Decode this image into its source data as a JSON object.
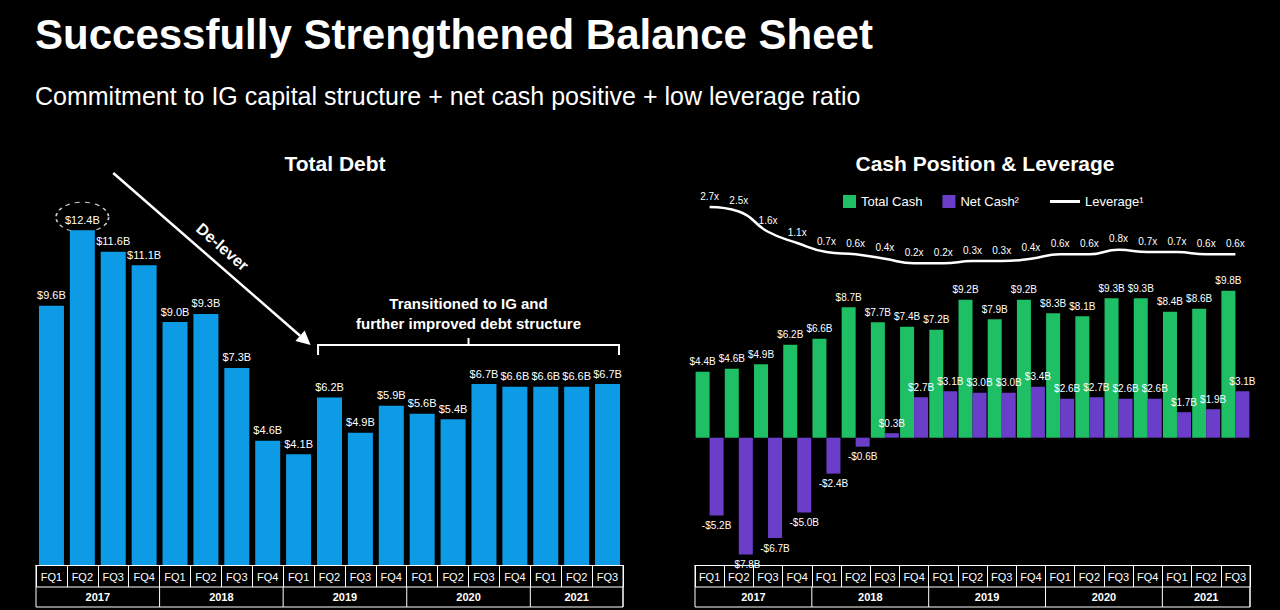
{
  "title": "Successfully Strengthened Balance Sheet",
  "subtitle": "Commitment to IG capital structure + net cash positive + low leverage ratio",
  "chart_data": [
    {
      "type": "bar",
      "title": "Total Debt",
      "categories": [
        "FQ1",
        "FQ2",
        "FQ3",
        "FQ4",
        "FQ1",
        "FQ2",
        "FQ3",
        "FQ4",
        "FQ1",
        "FQ2",
        "FQ3",
        "FQ4",
        "FQ1",
        "FQ2",
        "FQ3",
        "FQ4",
        "FQ1",
        "FQ2",
        "FQ3"
      ],
      "category_groups": [
        "2017",
        "2017",
        "2017",
        "2017",
        "2018",
        "2018",
        "2018",
        "2018",
        "2019",
        "2019",
        "2019",
        "2019",
        "2020",
        "2020",
        "2020",
        "2020",
        "2021",
        "2021",
        "2021"
      ],
      "values": [
        9.6,
        12.4,
        11.6,
        11.1,
        9.0,
        9.3,
        7.3,
        4.6,
        4.1,
        6.2,
        4.9,
        5.9,
        5.6,
        5.4,
        6.7,
        6.6,
        6.6,
        6.6,
        6.7
      ],
      "value_labels": [
        "$9.6B",
        "$12.4B",
        "$11.6B",
        "$11.1B",
        "$9.0B",
        "$9.3B",
        "$7.3B",
        "$4.6B",
        "$4.1B",
        "$6.2B",
        "$4.9B",
        "$5.9B",
        "$5.6B",
        "$5.4B",
        "$6.7B",
        "$6.6B",
        "$6.6B",
        "$6.6B",
        "$6.7B"
      ],
      "color": "#0e9be6",
      "ylim": [
        0,
        13
      ],
      "tick_labels": "x",
      "grid": false,
      "data_labels": true,
      "annotations": [
        "De-lever",
        "Transitioned to IG and\nfurther improved debt structure"
      ]
    },
    {
      "type": "bar",
      "title": "Cash Position & Leverage",
      "categories": [
        "FQ1",
        "FQ2",
        "FQ3",
        "FQ4",
        "FQ1",
        "FQ2",
        "FQ3",
        "FQ4",
        "FQ1",
        "FQ2",
        "FQ3",
        "FQ4",
        "FQ1",
        "FQ2",
        "FQ3",
        "FQ4",
        "FQ1",
        "FQ2",
        "FQ3"
      ],
      "category_groups": [
        "2017",
        "2017",
        "2017",
        "2017",
        "2018",
        "2018",
        "2018",
        "2018",
        "2019",
        "2019",
        "2019",
        "2019",
        "2020",
        "2020",
        "2020",
        "2020",
        "2021",
        "2021",
        "2021"
      ],
      "ylim": [
        -8.5,
        16
      ],
      "y2lim": [
        -13.2,
        3.1
      ],
      "tick_labels": "x",
      "grid": false,
      "data_labels": true,
      "legend": "top",
      "series": [
        {
          "name": "Total Cash",
          "type": "bar",
          "color": "#1fbf65",
          "values": [
            4.4,
            4.6,
            4.9,
            6.2,
            6.6,
            8.7,
            7.7,
            7.4,
            7.2,
            9.2,
            7.9,
            9.2,
            8.3,
            8.1,
            9.3,
            9.3,
            8.4,
            8.6,
            9.8
          ],
          "value_labels": [
            "$4.4B",
            "$4.6B",
            "$4.9B",
            "$6.2B",
            "$6.6B",
            "$8.7B",
            "$7.7B",
            "$7.4B",
            "$7.2B",
            "$9.2B",
            "$7.9B",
            "$9.2B",
            "$8.3B",
            "$8.1B",
            "$9.3B",
            "$9.3B",
            "$8.4B",
            "$8.6B",
            "$9.8B"
          ]
        },
        {
          "name": "Net Cash²",
          "type": "bar",
          "color": "#6a3ec9",
          "values": [
            -5.2,
            -7.8,
            -6.7,
            -5.0,
            -2.4,
            -0.6,
            0.3,
            2.7,
            3.1,
            3.0,
            3.0,
            3.4,
            2.6,
            2.7,
            2.6,
            2.6,
            1.7,
            1.9,
            3.1
          ],
          "value_labels": [
            "-$5.2B",
            "-$7.8B",
            "-$6.7B",
            "-$5.0B",
            "-$2.4B",
            "-$0.6B",
            "$0.3B",
            "$2.7B",
            "$3.1B",
            "$3.0B",
            "$3.0B",
            "$3.4B",
            "$2.6B",
            "$2.7B",
            "$2.6B",
            "$2.6B",
            "$1.7B",
            "$1.9B",
            "$3.1B"
          ]
        },
        {
          "name": "Leverage¹",
          "type": "line",
          "color": "#ffffff",
          "axis": "y2",
          "line_style": "smooth",
          "values": [
            2.7,
            2.5,
            1.6,
            1.1,
            0.7,
            0.6,
            0.4,
            0.2,
            0.2,
            0.3,
            0.3,
            0.4,
            0.6,
            0.6,
            0.8,
            0.7,
            0.7,
            0.6,
            0.6
          ],
          "value_labels": [
            "2.7x",
            "2.5x",
            "1.6x",
            "1.1x",
            "0.7x",
            "0.6x",
            "0.4x",
            "0.2x",
            "0.2x",
            "0.3x",
            "0.3x",
            "0.4x",
            "0.6x",
            "0.6x",
            "0.8x",
            "0.7x",
            "0.7x",
            "0.6x",
            "0.6x"
          ]
        }
      ]
    }
  ]
}
